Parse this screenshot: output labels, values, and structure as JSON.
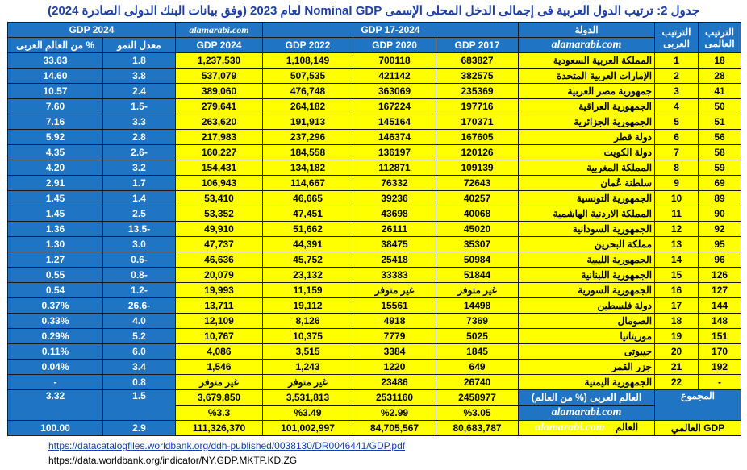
{
  "title": "جدول 2: ترتيب الدول العربية فى إجمالى الدخل المحلى الإسمى Nominal GDP لعام 2023 (وفق بيانات البنك الدولى الصادرة 2024)",
  "watermark": "alamarabi.com",
  "header": {
    "world_rank": "الترتيب العالمى",
    "arab_rank": "الترتيب العربى",
    "country": "الدولة",
    "gdp_group": "GDP  17-2024",
    "gdp_2017": "GDP 2017",
    "gdp_2020": "GDP  2020",
    "gdp_2022": "GDP 2022",
    "gdp_2024": "GDP  2024",
    "growth_group": "GDP   2024",
    "growth": "معدل النمو",
    "share": "%  من العالم العربى"
  },
  "rows": [
    {
      "world": "18",
      "arab": "1",
      "name": "المملكة العربية السعودية",
      "g2017": "683827",
      "g2020": "700118",
      "g2022": "1,108,149",
      "g2024": "1,237,530",
      "growth": "1.8",
      "share": "33.63"
    },
    {
      "world": "28",
      "arab": "2",
      "name": "الإمارات العربية المتحدة",
      "g2017": "382575",
      "g2020": "421142",
      "g2022": "507,535",
      "g2024": "537,079",
      "growth": "3.8",
      "share": "14.60"
    },
    {
      "world": "41",
      "arab": "3",
      "name": "جمهورية مصر العربية",
      "g2017": "235369",
      "g2020": "363069",
      "g2022": "476,748",
      "g2024": "389,060",
      "growth": "2.4",
      "share": "10.57"
    },
    {
      "world": "50",
      "arab": "4",
      "name": "الجمهورية العراقية",
      "g2017": "197716",
      "g2020": "167224",
      "g2022": "264,182",
      "g2024": "279,641",
      "growth": "-1.5",
      "share": "7.60"
    },
    {
      "world": "51",
      "arab": "5",
      "name": "الجمهورية الجزائرية",
      "g2017": "170371",
      "g2020": "145164",
      "g2022": "191,913",
      "g2024": "263,620",
      "growth": "3.3",
      "share": "7.16"
    },
    {
      "world": "56",
      "arab": "6",
      "name": "دولة قطر",
      "g2017": "167605",
      "g2020": "146374",
      "g2022": "237,296",
      "g2024": "217,983",
      "growth": "2.8",
      "share": "5.92"
    },
    {
      "world": "58",
      "arab": "7",
      "name": "دولة الكويت",
      "g2017": "120126",
      "g2020": "136197",
      "g2022": "184,558",
      "g2024": "160,227",
      "growth": "-2.6",
      "share": "4.35"
    },
    {
      "world": "59",
      "arab": "8",
      "name": "المملكة المغربية",
      "g2017": "109139",
      "g2020": "112871",
      "g2022": "134,182",
      "g2024": "154,431",
      "growth": "3.2",
      "share": "4.20"
    },
    {
      "world": "69",
      "arab": "9",
      "name": "سلطنة عُمان",
      "g2017": "72643",
      "g2020": "76332",
      "g2022": "114,667",
      "g2024": "106,943",
      "growth": "1.7",
      "share": "2.91"
    },
    {
      "world": "89",
      "arab": "10",
      "name": "الجمهورية التونسية",
      "g2017": "40257",
      "g2020": "39236",
      "g2022": "46,665",
      "g2024": "53,410",
      "growth": "1.4",
      "share": "1.45"
    },
    {
      "world": "90",
      "arab": "11",
      "name": "المملكة الاردنية الهاشمية",
      "g2017": "40068",
      "g2020": "43698",
      "g2022": "47,451",
      "g2024": "53,352",
      "growth": "2.5",
      "share": "1.45"
    },
    {
      "world": "92",
      "arab": "12",
      "name": "الجمهورية السودانية",
      "g2017": "45020",
      "g2020": "26111",
      "g2022": "51,662",
      "g2024": "49,910",
      "growth": "-13.5",
      "share": "1.36"
    },
    {
      "world": "95",
      "arab": "13",
      "name": "مملكة البحرين",
      "g2017": "35307",
      "g2020": "38475",
      "g2022": "44,391",
      "g2024": "47,737",
      "growth": "3.0",
      "share": "1.30"
    },
    {
      "world": "96",
      "arab": "14",
      "name": "الجمهورية الليبية",
      "g2017": "50984",
      "g2020": "25418",
      "g2022": "45,752",
      "g2024": "46,636",
      "growth": "-0.6",
      "share": "1.27"
    },
    {
      "world": "126",
      "arab": "15",
      "name": "الجمهورية اللبنانية",
      "g2017": "51844",
      "g2020": "33383",
      "g2022": "23,132",
      "g2024": "20,079",
      "growth": "-0.8",
      "share": "0.55"
    },
    {
      "world": "127",
      "arab": "16",
      "name": "الجمهورية السورية",
      "g2017": "غير متوفر",
      "g2020": "غير متوفر",
      "g2022": "11,159",
      "g2024": "19,993",
      "growth": "-1.2",
      "share": "0.54"
    },
    {
      "world": "144",
      "arab": "17",
      "name": "دولة فلسطين",
      "g2017": "14498",
      "g2020": "15561",
      "g2022": "19,112",
      "g2024": "13,711",
      "growth": "-26.6",
      "share": "0.37%"
    },
    {
      "world": "148",
      "arab": "18",
      "name": "الصومال",
      "g2017": "7369",
      "g2020": "4918",
      "g2022": "8,126",
      "g2024": "12,109",
      "growth": "4.0",
      "share": "0.33%"
    },
    {
      "world": "151",
      "arab": "19",
      "name": "موريتانيا",
      "g2017": "5025",
      "g2020": "7779",
      "g2022": "10,375",
      "g2024": "10,767",
      "growth": "5.2",
      "share": "0.29%"
    },
    {
      "world": "170",
      "arab": "20",
      "name": "جيبوتى",
      "g2017": "1845",
      "g2020": "3384",
      "g2022": "3,515",
      "g2024": "4,086",
      "growth": "6.0",
      "share": "0.11%"
    },
    {
      "world": "192",
      "arab": "21",
      "name": "جزر القمر",
      "g2017": "649",
      "g2020": "1220",
      "g2022": "1,243",
      "g2024": "1,546",
      "growth": "3.4",
      "share": "0.04%"
    },
    {
      "world": "-",
      "arab": "22",
      "name": "الجمهورية اليمنية",
      "g2017": "26740",
      "g2020": "23486",
      "g2022": "غير متوفر",
      "g2024": "غير متوفر",
      "growth": "0.8",
      "share": "-"
    }
  ],
  "total": {
    "label": "المجموع",
    "name": "العالم العربى  (% من العالم)",
    "g2017": "2458977",
    "g2017_pct": "%3.05",
    "g2020": "2531160",
    "g2020_pct": "%2.99",
    "g2022": "3,531,813",
    "g2022_pct": "%3.49",
    "g2024": "3,679,850",
    "g2024_pct": "%3.3",
    "growth": "1.5",
    "share": "3.32"
  },
  "world": {
    "label": "GDP العالمي",
    "name": "العالم",
    "g2017": "80,683,787",
    "g2020": "84,705,567",
    "g2022": "101,002,997",
    "g2024": "111,326,370",
    "growth": "2.9",
    "share": "100.00"
  },
  "links": {
    "pdf": "https://datacatalogfiles.worldbank.org/ddh-published/0038130/DR0046441/GDP.pdf",
    "indicator": "https://data.worldbank.org/indicator/NY.GDP.MKTP.KD.ZG"
  }
}
